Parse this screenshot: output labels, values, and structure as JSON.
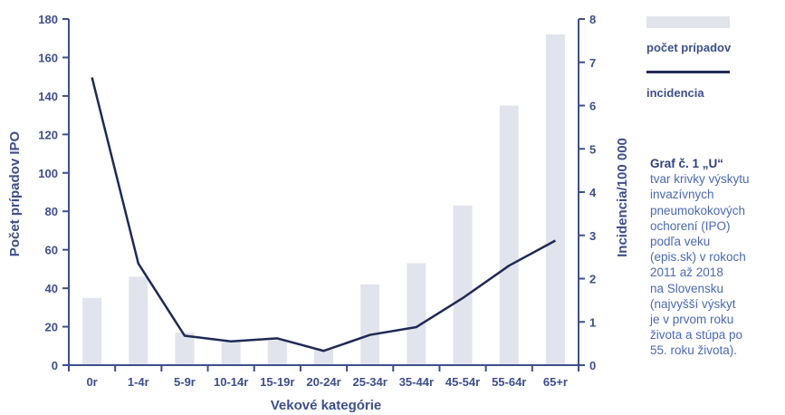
{
  "chart_data": {
    "type": "bar+line",
    "categories": [
      "0r",
      "1-4r",
      "5-9r",
      "10-14r",
      "15-19r",
      "20-24r",
      "25-34r",
      "35-44r",
      "45-54r",
      "55-64r",
      "65+r"
    ],
    "series": [
      {
        "name": "počet prípadov",
        "type": "bar",
        "axis": "left",
        "values": [
          35,
          46,
          17,
          12,
          13,
          8,
          42,
          53,
          83,
          135,
          172
        ]
      },
      {
        "name": "incidencia",
        "type": "line",
        "axis": "right",
        "values": [
          6.65,
          2.35,
          0.68,
          0.55,
          0.62,
          0.33,
          0.7,
          0.88,
          1.55,
          2.3,
          2.88
        ]
      }
    ],
    "xlabel": "Vekové kategórie",
    "ylabel": "Počet prípadov IPO",
    "y2label": "Incidencia/100 000",
    "ylim": [
      0,
      180
    ],
    "y2lim": [
      0,
      8
    ],
    "yticks": [
      0,
      20,
      40,
      60,
      80,
      100,
      120,
      140,
      160,
      180
    ],
    "y2ticks": [
      0,
      1,
      2,
      3,
      4,
      5,
      6,
      7,
      8
    ],
    "legend_position": "right",
    "colors": {
      "bars": "#e1e4ec",
      "line": "#1f2a55",
      "axis": "#3d4f8c",
      "text": "#3d4f8c"
    }
  },
  "caption": {
    "title": "Graf č. 1 „U“",
    "lines": [
      "tvar krivky výskytu",
      "invazívnych",
      "pneumokokových",
      "ochorení (IPO)",
      "podľa veku",
      "(epis.sk) v rokoch",
      "2011 až 2018",
      "na Slovensku",
      "(najvyšší výskyt",
      "je v prvom roku",
      "života a stúpa po",
      "55. roku života)."
    ]
  }
}
